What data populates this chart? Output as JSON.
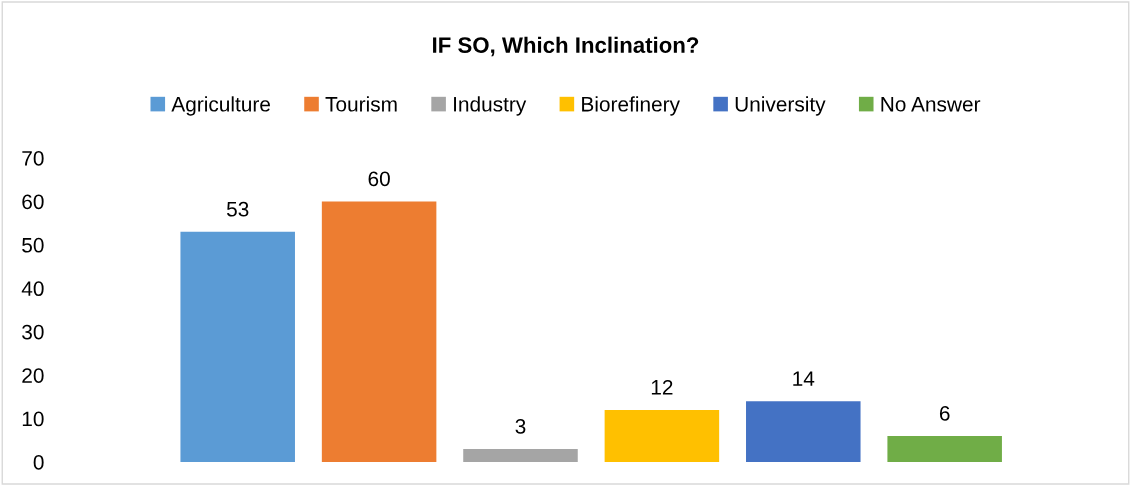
{
  "chart_data": {
    "type": "bar",
    "title": "IF SO, Which Inclination?",
    "categories": [
      null
    ],
    "series": [
      {
        "name": "Agriculture",
        "color": "#5b9bd5",
        "values": [
          53
        ]
      },
      {
        "name": "Tourism",
        "color": "#ed7d31",
        "values": [
          60
        ]
      },
      {
        "name": "Industry",
        "color": "#a5a5a5",
        "values": [
          3
        ]
      },
      {
        "name": "Biorefinery",
        "color": "#ffc000",
        "values": [
          12
        ]
      },
      {
        "name": "University",
        "color": "#4472c4",
        "values": [
          14
        ]
      },
      {
        "name": "No Answer",
        "color": "#70ad47",
        "values": [
          6
        ]
      }
    ],
    "ylim": [
      0,
      70
    ],
    "yticks": [
      0,
      10,
      20,
      30,
      40,
      50,
      60,
      70
    ],
    "data_labels": true,
    "legend": "top",
    "grid": false
  }
}
